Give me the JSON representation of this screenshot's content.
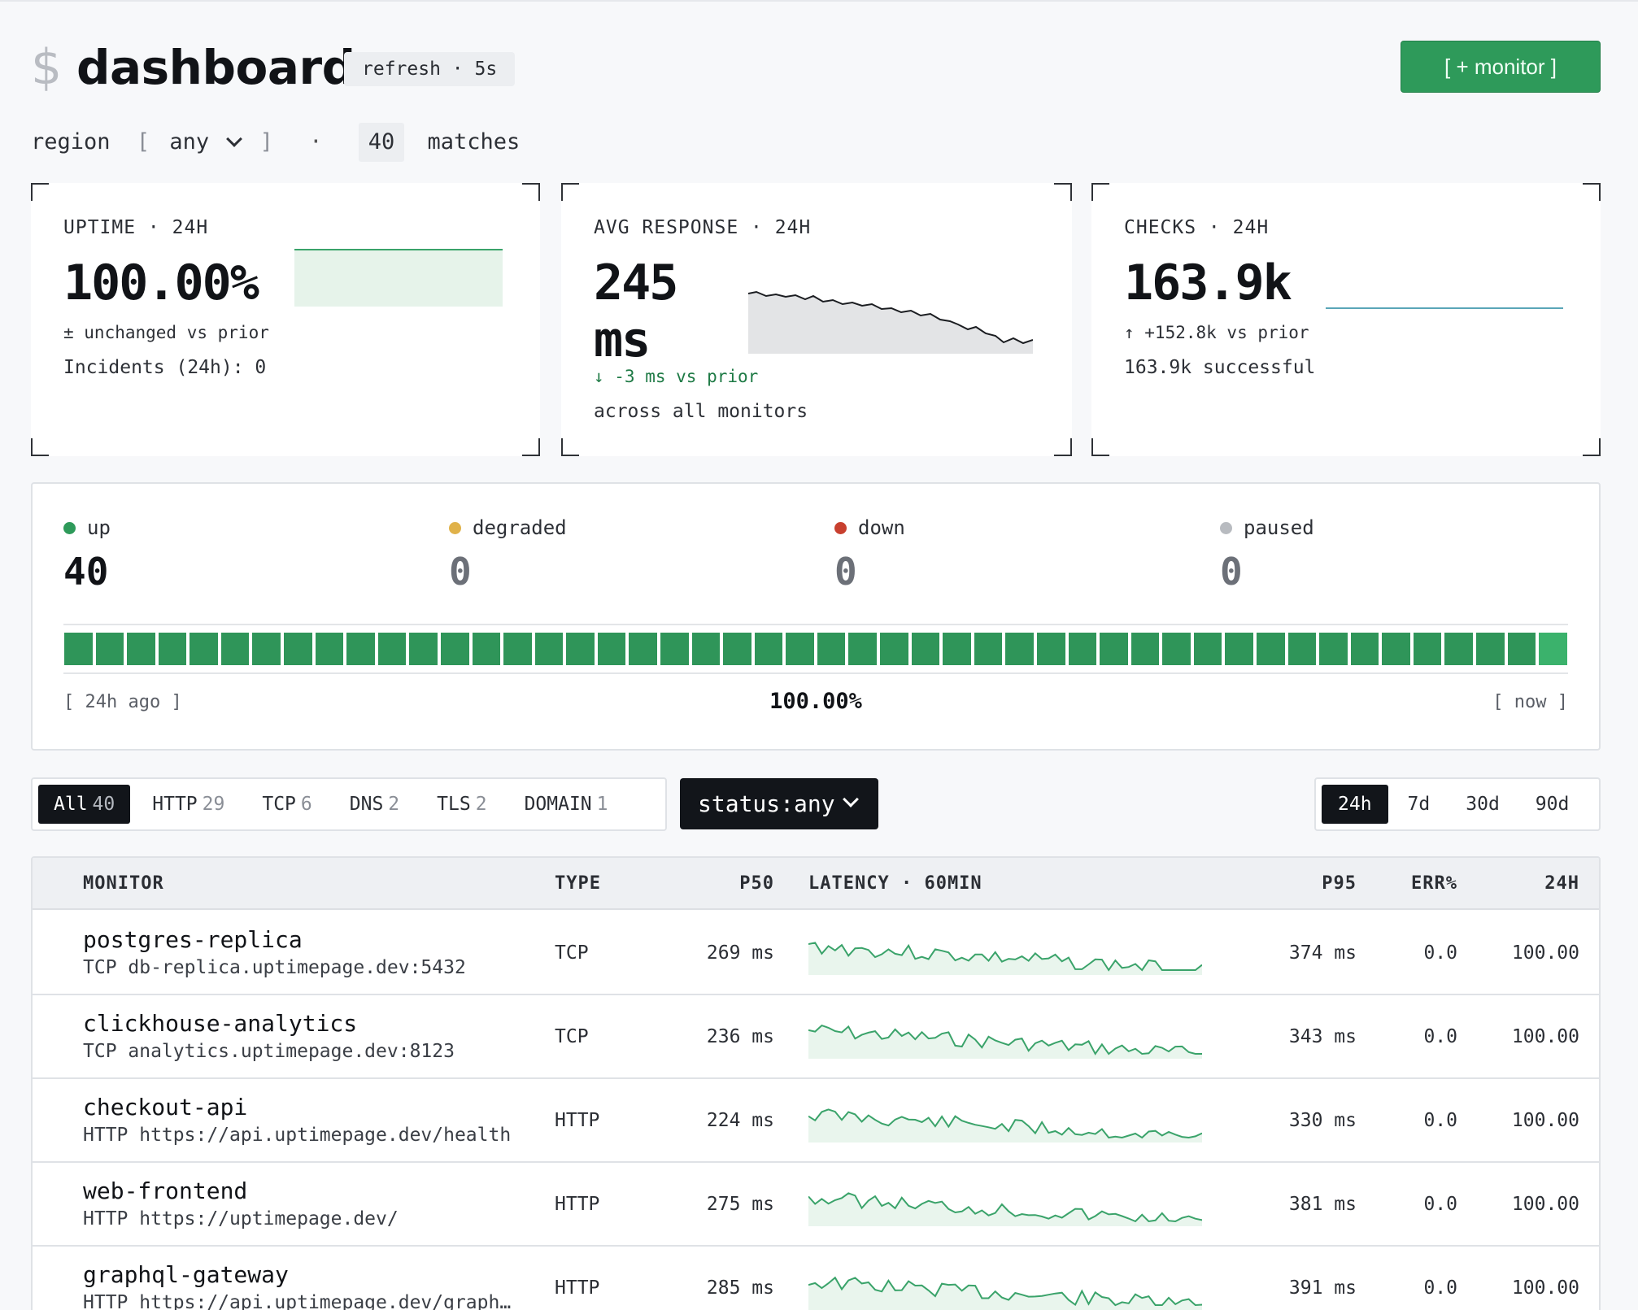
{
  "header": {
    "prompt": "$",
    "title": "dashboard",
    "refresh": "refresh · 5s",
    "monitor_button": "[ + monitor ]"
  },
  "filter": {
    "region_label": "region",
    "bracket_open": "[",
    "region_value": "any",
    "bracket_close": "]",
    "separator": "·",
    "match_count": "40",
    "match_label": "matches"
  },
  "cards": {
    "uptime": {
      "label": "UPTIME · 24H",
      "value": "100.00%",
      "delta": "± unchanged vs prior",
      "note": "Incidents (24h): 0"
    },
    "response": {
      "label": "AVG RESPONSE · 24H",
      "value_line1": "245",
      "value_line2": "ms",
      "delta": "↓ -3 ms vs prior",
      "note": "across all monitors"
    },
    "checks": {
      "label": "CHECKS · 24H",
      "value": "163.9k",
      "delta": "↑ +152.8k vs prior",
      "note": "163.9k successful"
    }
  },
  "status": {
    "up": {
      "label": "up",
      "count": "40",
      "color": "#2e9a5a"
    },
    "degraded": {
      "label": "degraded",
      "count": "0",
      "color": "#e0b24a"
    },
    "down": {
      "label": "down",
      "count": "0",
      "color": "#c8402f"
    },
    "paused": {
      "label": "paused",
      "count": "0",
      "color": "#b8bbc0"
    },
    "bar_count": 48,
    "start_label": "[ 24h ago ]",
    "overall": "100.00%",
    "end_label": "[ now ]"
  },
  "type_tabs": [
    {
      "label": "All",
      "count": "40",
      "active": true
    },
    {
      "label": "HTTP",
      "count": "29",
      "active": false
    },
    {
      "label": "TCP",
      "count": "6",
      "active": false
    },
    {
      "label": "DNS",
      "count": "2",
      "active": false
    },
    {
      "label": "TLS",
      "count": "2",
      "active": false
    },
    {
      "label": "DOMAIN",
      "count": "1",
      "active": false
    }
  ],
  "status_filter": "status:any",
  "range_tabs": [
    {
      "label": "24h",
      "active": true
    },
    {
      "label": "7d",
      "active": false
    },
    {
      "label": "30d",
      "active": false
    },
    {
      "label": "90d",
      "active": false
    }
  ],
  "table": {
    "columns": {
      "monitor": "MONITOR",
      "type": "TYPE",
      "p50": "P50",
      "latency": "LATENCY · 60MIN",
      "p95": "P95",
      "err": "ERR%",
      "day": "24H"
    },
    "rows": [
      {
        "name": "postgres-replica",
        "target": "TCP db-replica.uptimepage.dev:5432",
        "type": "TCP",
        "p50": "269 ms",
        "p95": "374 ms",
        "err": "0.0",
        "uptime": "100.00"
      },
      {
        "name": "clickhouse-analytics",
        "target": "TCP analytics.uptimepage.dev:8123",
        "type": "TCP",
        "p50": "236 ms",
        "p95": "343 ms",
        "err": "0.0",
        "uptime": "100.00"
      },
      {
        "name": "checkout-api",
        "target": "HTTP https://api.uptimepage.dev/health",
        "type": "HTTP",
        "p50": "224 ms",
        "p95": "330 ms",
        "err": "0.0",
        "uptime": "100.00"
      },
      {
        "name": "web-frontend",
        "target": "HTTP https://uptimepage.dev/",
        "type": "HTTP",
        "p50": "275 ms",
        "p95": "381 ms",
        "err": "0.0",
        "uptime": "100.00"
      },
      {
        "name": "graphql-gateway",
        "target": "HTTP https://api.uptimepage.dev/graph…",
        "type": "HTTP",
        "p50": "285 ms",
        "p95": "391 ms",
        "err": "0.0",
        "uptime": "100.00"
      }
    ]
  },
  "colors": {
    "accent_green": "#2e9a5a",
    "spark_green": "#3aa36a",
    "checks_line": "#5aa6b8"
  }
}
